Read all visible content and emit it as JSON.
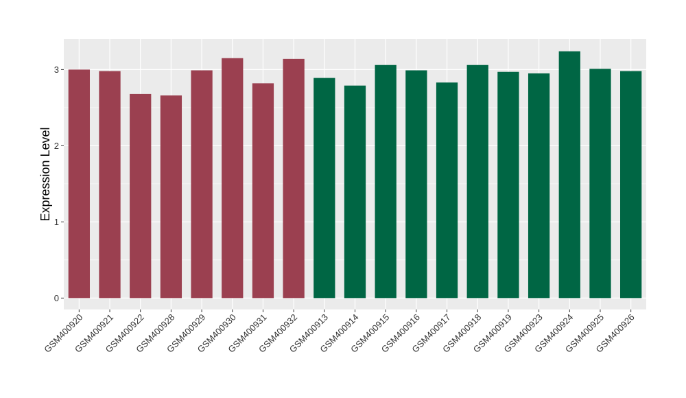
{
  "chart_data": {
    "type": "bar",
    "title": "",
    "xlabel": "",
    "ylabel": "Expression Level",
    "ylim": [
      -0.15,
      3.4
    ],
    "yticks": [
      0,
      1,
      2,
      3
    ],
    "grid": true,
    "categories": [
      "GSM400920",
      "GSM400921",
      "GSM400922",
      "GSM400928",
      "GSM400929",
      "GSM400930",
      "GSM400931",
      "GSM400932",
      "GSM400913",
      "GSM400914",
      "GSM400915",
      "GSM400916",
      "GSM400917",
      "GSM400918",
      "GSM400919",
      "GSM400923",
      "GSM400924",
      "GSM400925",
      "GSM400926"
    ],
    "values": [
      3.0,
      2.98,
      2.68,
      2.66,
      2.99,
      3.15,
      2.82,
      3.14,
      2.89,
      2.79,
      3.06,
      2.99,
      2.83,
      3.06,
      2.97,
      2.95,
      3.24,
      3.01,
      2.98
    ],
    "groups": [
      0,
      0,
      0,
      0,
      0,
      0,
      0,
      0,
      1,
      1,
      1,
      1,
      1,
      1,
      1,
      1,
      1,
      1,
      1
    ],
    "group_colors": [
      "#9b4050",
      "#006644"
    ],
    "panel_color": "#ebebeb",
    "grid_color": "#ffffff"
  }
}
